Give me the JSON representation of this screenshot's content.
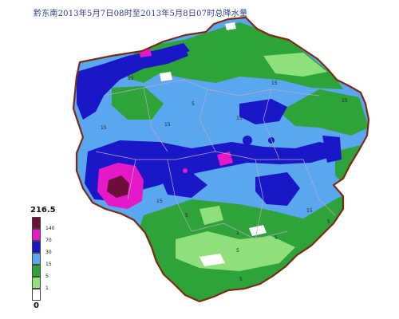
{
  "title": "黔东南2013年5月7日08时至2013年5月8日07时总降水量",
  "legend": {
    "max_label": "216.5",
    "min_label": "0",
    "bins": [
      {
        "label": "140",
        "color": "#6b0f3a"
      },
      {
        "label": "70",
        "color": "#e619c8"
      },
      {
        "label": "30",
        "color": "#1a17c8"
      },
      {
        "label": "15",
        "color": "#5aa7ef"
      },
      {
        "label": "5",
        "color": "#2ea33a"
      },
      {
        "label": "1",
        "color": "#8fe07a"
      },
      {
        "label": "",
        "color": "#ffffff"
      }
    ]
  },
  "colors": {
    "boundary": "#7a2a12",
    "county_lines": "#b9a7c9"
  },
  "isolines": {
    "l1": "15",
    "l2": "15",
    "l3": "15",
    "l4": "15",
    "l5": "15",
    "l6": "5",
    "l7": "5",
    "l8": "5",
    "l9": "15",
    "l10": "5",
    "l11": "1",
    "l12": "5",
    "l13": "15",
    "l14": "5",
    "l15": "15"
  }
}
